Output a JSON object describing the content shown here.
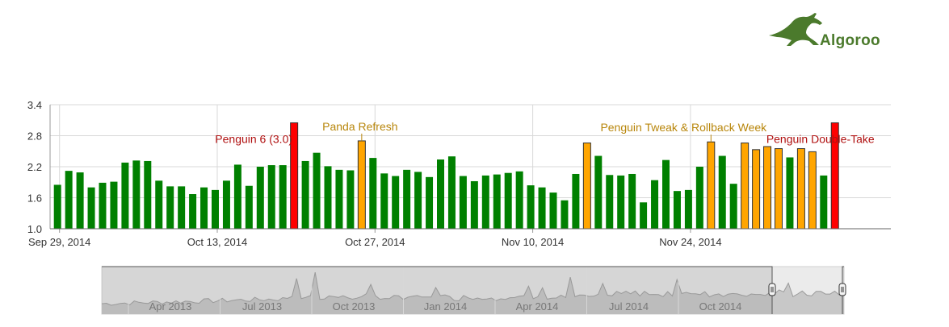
{
  "brand": {
    "name": "Algoroo",
    "logo_icon": "kangaroo-icon"
  },
  "colors": {
    "normal": "#008000",
    "minor": "#ffa500",
    "major": "#ff0000",
    "navigator_fill": "#c8c8c8"
  },
  "chart_data": {
    "type": "bar",
    "title": "",
    "xlabel": "",
    "ylabel": "",
    "ylim": [
      1.0,
      3.4
    ],
    "yticks": [
      "1.0",
      "1.6",
      "2.2",
      "2.8",
      "3.4"
    ],
    "grid": true,
    "x_start": "2014-09-29",
    "xtick_labels": [
      "Sep 29, 2014",
      "Oct 13, 2014",
      "Oct 27, 2014",
      "Nov 10, 2014",
      "Nov 24, 2014"
    ],
    "values": [
      1.85,
      2.12,
      2.09,
      1.8,
      1.89,
      1.91,
      2.28,
      2.32,
      2.31,
      1.93,
      1.82,
      1.82,
      1.67,
      1.8,
      1.75,
      1.93,
      2.24,
      1.83,
      2.2,
      2.23,
      2.23,
      3.05,
      2.31,
      2.47,
      2.21,
      2.14,
      2.13,
      2.7,
      2.37,
      2.07,
      2.02,
      2.14,
      2.1,
      2.0,
      2.34,
      2.4,
      2.02,
      1.92,
      2.03,
      2.05,
      2.08,
      2.11,
      1.84,
      1.8,
      1.7,
      1.55,
      2.06,
      2.66,
      2.41,
      2.04,
      2.03,
      2.06,
      1.51,
      1.94,
      2.33,
      1.73,
      1.75,
      2.2,
      2.68,
      2.41,
      1.87,
      2.66,
      2.53,
      2.59,
      2.55,
      2.38,
      2.55,
      2.49,
      2.03,
      3.05
    ],
    "severity": [
      "n",
      "n",
      "n",
      "n",
      "n",
      "n",
      "n",
      "n",
      "n",
      "n",
      "n",
      "n",
      "n",
      "n",
      "n",
      "n",
      "n",
      "n",
      "n",
      "n",
      "n",
      "r",
      "n",
      "n",
      "n",
      "n",
      "n",
      "o",
      "n",
      "n",
      "n",
      "n",
      "n",
      "n",
      "n",
      "n",
      "n",
      "n",
      "n",
      "n",
      "n",
      "n",
      "n",
      "n",
      "n",
      "n",
      "n",
      "o",
      "n",
      "n",
      "n",
      "n",
      "n",
      "n",
      "n",
      "n",
      "n",
      "n",
      "o",
      "n",
      "n",
      "o",
      "o",
      "o",
      "o",
      "n",
      "o",
      "o",
      "n",
      "r"
    ],
    "annotations": [
      {
        "index": 21,
        "label": "Penguin 6 (3.0)",
        "color": "#b01010"
      },
      {
        "index": 27,
        "label": "Panda Refresh",
        "color": "#b8860b"
      },
      {
        "index": 58,
        "label": "Penguin Tweak & Rollback Week",
        "color": "#b8860b"
      },
      {
        "index": 69,
        "label": "Penguin Double-Take",
        "color": "#b01010"
      }
    ],
    "navigator": {
      "labels": [
        "Apr 2013",
        "Jul 2013",
        "Oct 2013",
        "Jan 2014",
        "Apr 2014",
        "Jul 2014",
        "Oct 2014"
      ],
      "selected_range": [
        "Sep 29, 2014",
        "Dec 7, 2014"
      ]
    }
  }
}
